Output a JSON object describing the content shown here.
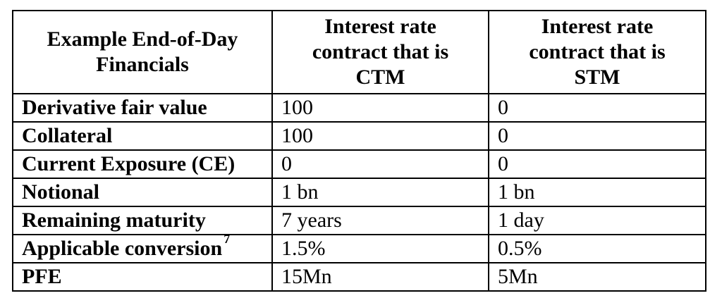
{
  "table": {
    "header": {
      "col1": [
        "Example End-of-Day",
        "Financials"
      ],
      "col2": [
        "Interest rate",
        "contract that is",
        "CTM"
      ],
      "col3": [
        "Interest rate",
        "contract that is",
        "STM"
      ]
    },
    "rows": [
      {
        "label": "Derivative fair value",
        "ctm": "100",
        "stm": "0"
      },
      {
        "label": "Collateral",
        "ctm": "100",
        "stm": "0"
      },
      {
        "label": "Current Exposure (CE)",
        "ctm": "0",
        "stm": "0"
      },
      {
        "label": "Notional",
        "ctm": "1 bn",
        "stm": "1 bn"
      },
      {
        "label": "Remaining maturity",
        "ctm": "7 years",
        "stm": "1 day"
      },
      {
        "label": "Applicable conversion",
        "footnote": "7",
        "ctm": "1.5%",
        "stm": "0.5%"
      },
      {
        "label": "PFE",
        "ctm": "15Mn",
        "stm": "5Mn"
      }
    ]
  }
}
